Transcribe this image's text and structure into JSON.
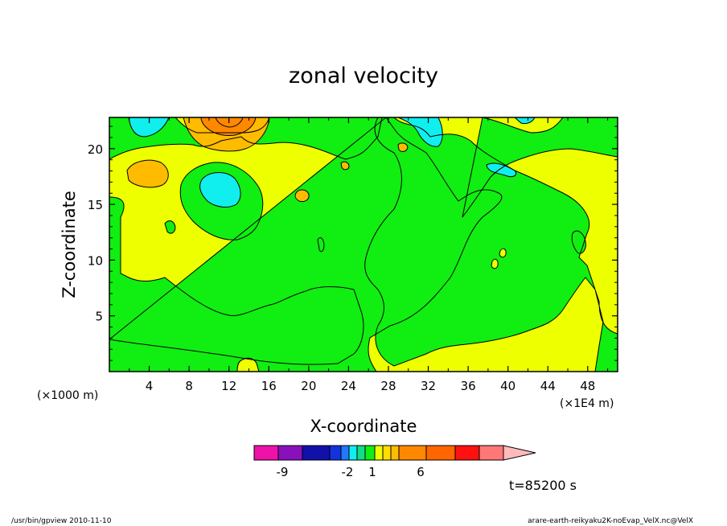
{
  "chart_data": {
    "type": "heatmap",
    "title": "zonal velocity",
    "xlabel": "X-coordinate",
    "ylabel": "Z-coordinate",
    "x_unit_note": "(×1000 m)",
    "x_scale_note": "(×1E4 m)",
    "x_ticks": [
      "4",
      "8",
      "12",
      "16",
      "20",
      "24",
      "28",
      "32",
      "36",
      "40",
      "44",
      "48"
    ],
    "y_ticks": [
      "5",
      "10",
      "15",
      "20"
    ],
    "xlim": [
      0,
      51
    ],
    "ylim": [
      0,
      22.8
    ],
    "colorbar": {
      "tick_labels": [
        "-9",
        "-2",
        "1",
        "6"
      ],
      "colors": [
        "#ee11aa",
        "#8811bb",
        "#1111aa",
        "#1133dd",
        "#2277ff",
        "#11eeee",
        "#11dd88",
        "#11ee11",
        "#eeff00",
        "#ffdd00",
        "#ffbb00",
        "#ff8800",
        "#ff6600",
        "#ff1111",
        "#ff7777",
        "#ffbbbb"
      ]
    },
    "colors": {
      "background_level": "#eeff00",
      "green_level": "#11ee11",
      "cyan_level": "#11eeee",
      "light_orange_level": "#ffbb00",
      "orange_level": "#ff8800"
    },
    "time_label": "t=85200 s"
  },
  "footer": {
    "left": "/usr/bin/gpview   2010-11-10",
    "right": "arare-earth-reikyaku2K-noEvap_VelX.nc@VelX"
  }
}
